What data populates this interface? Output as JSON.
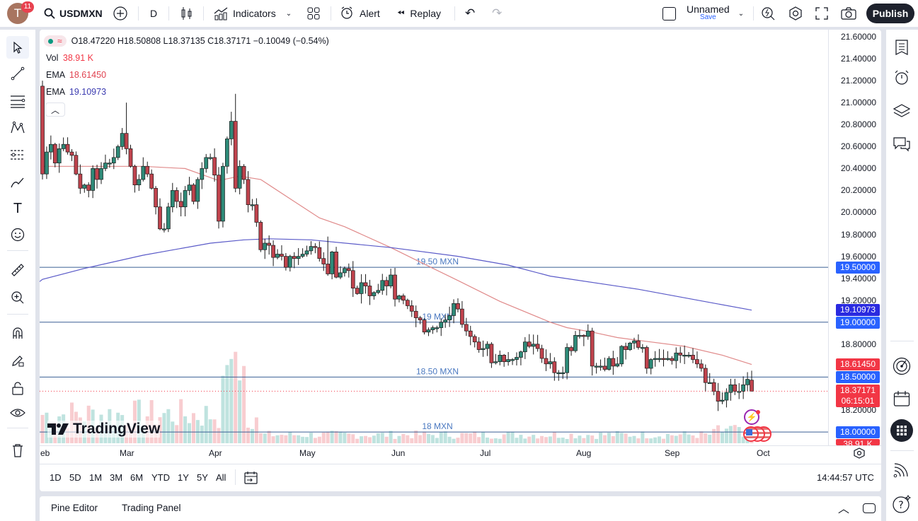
{
  "topbar": {
    "avatar_letter": "T",
    "notification_count": "11",
    "symbol": "USDMXN",
    "interval": "D",
    "indicators_label": "Indicators",
    "alert_label": "Alert",
    "replay_label": "Replay",
    "layout_name": "Unnamed",
    "layout_save": "Save",
    "publish_label": "Publish"
  },
  "legend": {
    "ohlc": "O18.47220 H18.50808 L18.37135 C18.37171 −0.10049 (−0.54%)",
    "vol_label": "Vol",
    "vol_value": "38.91 K",
    "ema1_label": "EMA",
    "ema1_value": "18.61450",
    "ema2_label": "EMA",
    "ema2_value": "19.10973"
  },
  "watermark": "TradingView",
  "price_axis": {
    "ticks": [
      "21.60000",
      "21.40000",
      "21.20000",
      "21.00000",
      "20.80000",
      "20.60000",
      "20.40000",
      "20.20000",
      "20.00000",
      "19.80000",
      "19.60000",
      "19.40000",
      "19.20000",
      "18.80000",
      "18.20000"
    ],
    "tags": {
      "level_1950": "19.50000",
      "ema_slow": "19.10973",
      "level_1900": "19.00000",
      "ema_fast": "18.61450",
      "level_1850": "18.50000",
      "last_price": "18.37171",
      "countdown": "06:15:01",
      "level_1800": "18.00000",
      "volume": "38.91 K"
    }
  },
  "time_axis": [
    "eb",
    "Mar",
    "Apr",
    "May",
    "Jun",
    "Jul",
    "Aug",
    "Sep",
    "Oct"
  ],
  "horizontal_levels": [
    {
      "price": 19.5,
      "label": "19.50 MXN"
    },
    {
      "price": 19.0,
      "label": "19 MXN"
    },
    {
      "price": 18.5,
      "label": "18.50 MXN"
    },
    {
      "price": 18.0,
      "label": "18 MXN"
    }
  ],
  "range_buttons": [
    "1D",
    "5D",
    "1M",
    "3M",
    "6M",
    "YTD",
    "1Y",
    "5Y",
    "All"
  ],
  "clock": "14:44:57 UTC",
  "bottom_tabs": [
    "Pine Editor",
    "Trading Panel"
  ],
  "colors": {
    "up": "#2e8a78",
    "down": "#c0434d",
    "ema_fast": "#e08a8a",
    "ema_slow": "#5a5ac8",
    "level": "#3a5f95",
    "tag_blue": "#2962ff",
    "tag_red": "#f23645",
    "tag_slow": "#2a2ae0"
  },
  "chart_data": {
    "type": "candlestick",
    "symbol": "USDMXN",
    "first_open": 21.15,
    "last_candle": {
      "open": 18.4722,
      "high": 18.50808,
      "low": 18.37135,
      "close": 18.37171
    },
    "closes": [
      20.35,
      20.55,
      20.62,
      20.45,
      20.58,
      20.62,
      20.55,
      20.52,
      20.35,
      20.22,
      20.25,
      20.2,
      20.4,
      20.3,
      20.4,
      20.45,
      20.45,
      20.5,
      20.6,
      20.72,
      20.58,
      20.42,
      20.25,
      20.3,
      20.42,
      20.35,
      20.22,
      20.05,
      19.85,
      19.85,
      20.05,
      20.2,
      20.1,
      20.05,
      20.2,
      20.25,
      20.1,
      20.3,
      20.4,
      20.5,
      20.5,
      20.34,
      19.92,
      20.42,
      20.67,
      20.83,
      20.22,
      20.42,
      20.3,
      20.07,
      20.07,
      19.91,
      19.66,
      19.72,
      19.7,
      19.59,
      19.62,
      19.6,
      19.5,
      19.6,
      19.58,
      19.6,
      19.62,
      19.65,
      19.69,
      19.68,
      19.58,
      19.53,
      19.44,
      19.64,
      19.41,
      19.45,
      19.49,
      19.47,
      19.31,
      19.26,
      19.36,
      19.33,
      19.24,
      19.27,
      19.29,
      19.38,
      19.33,
      19.43,
      19.21,
      19.24,
      19.2,
      19.15,
      19.1,
      19.04,
      19.02,
      18.91,
      18.93,
      18.95,
      18.95,
      19.0,
      19.02,
      19.06,
      19.17,
      19.12,
      18.98,
      18.92,
      18.87,
      18.82,
      18.75,
      18.76,
      18.8,
      18.63,
      18.64,
      18.7,
      18.64,
      18.66,
      18.66,
      18.68,
      18.73,
      18.82,
      18.78,
      18.8,
      18.76,
      18.67,
      18.62,
      18.64,
      18.54,
      18.54,
      18.54,
      18.77,
      18.74,
      18.88,
      18.88,
      18.87,
      18.92,
      18.6,
      18.6,
      18.6,
      18.57,
      18.67,
      18.6,
      18.62,
      18.78,
      18.75,
      18.81,
      18.83,
      18.77,
      18.77,
      18.58,
      18.66,
      18.67,
      18.67,
      18.66,
      18.67,
      18.65,
      18.72,
      18.7,
      18.7,
      18.7,
      18.66,
      18.62,
      18.58,
      18.45,
      18.45,
      18.37,
      18.28,
      18.29,
      18.36,
      18.43,
      18.37,
      18.37,
      18.43,
      18.48,
      18.37171
    ],
    "ema_fast_keypoints": [
      [
        0,
        20.42
      ],
      [
        24,
        20.42
      ],
      [
        34,
        20.4
      ],
      [
        42,
        20.29
      ],
      [
        47,
        20.33
      ],
      [
        52,
        20.3
      ],
      [
        60,
        20.1
      ],
      [
        66,
        19.95
      ],
      [
        72,
        19.87
      ],
      [
        83,
        19.68
      ],
      [
        92,
        19.51
      ],
      [
        99,
        19.38
      ],
      [
        109,
        19.19
      ],
      [
        121,
        19.0
      ],
      [
        125,
        18.95
      ],
      [
        131,
        18.91
      ],
      [
        137,
        18.86
      ],
      [
        143,
        18.83
      ],
      [
        153,
        18.78
      ],
      [
        162,
        18.7
      ],
      [
        169,
        18.6145
      ]
    ],
    "ema_slow_keypoints": [
      [
        0,
        19.39
      ],
      [
        10,
        19.49
      ],
      [
        24,
        19.61
      ],
      [
        40,
        19.72
      ],
      [
        48,
        19.75
      ],
      [
        54,
        19.76
      ],
      [
        64,
        19.75
      ],
      [
        83,
        19.68
      ],
      [
        99,
        19.6
      ],
      [
        111,
        19.52
      ],
      [
        121,
        19.42
      ],
      [
        142,
        19.3
      ],
      [
        159,
        19.18
      ],
      [
        169,
        19.10973
      ]
    ],
    "ylim": [
      18.0,
      21.6
    ]
  }
}
